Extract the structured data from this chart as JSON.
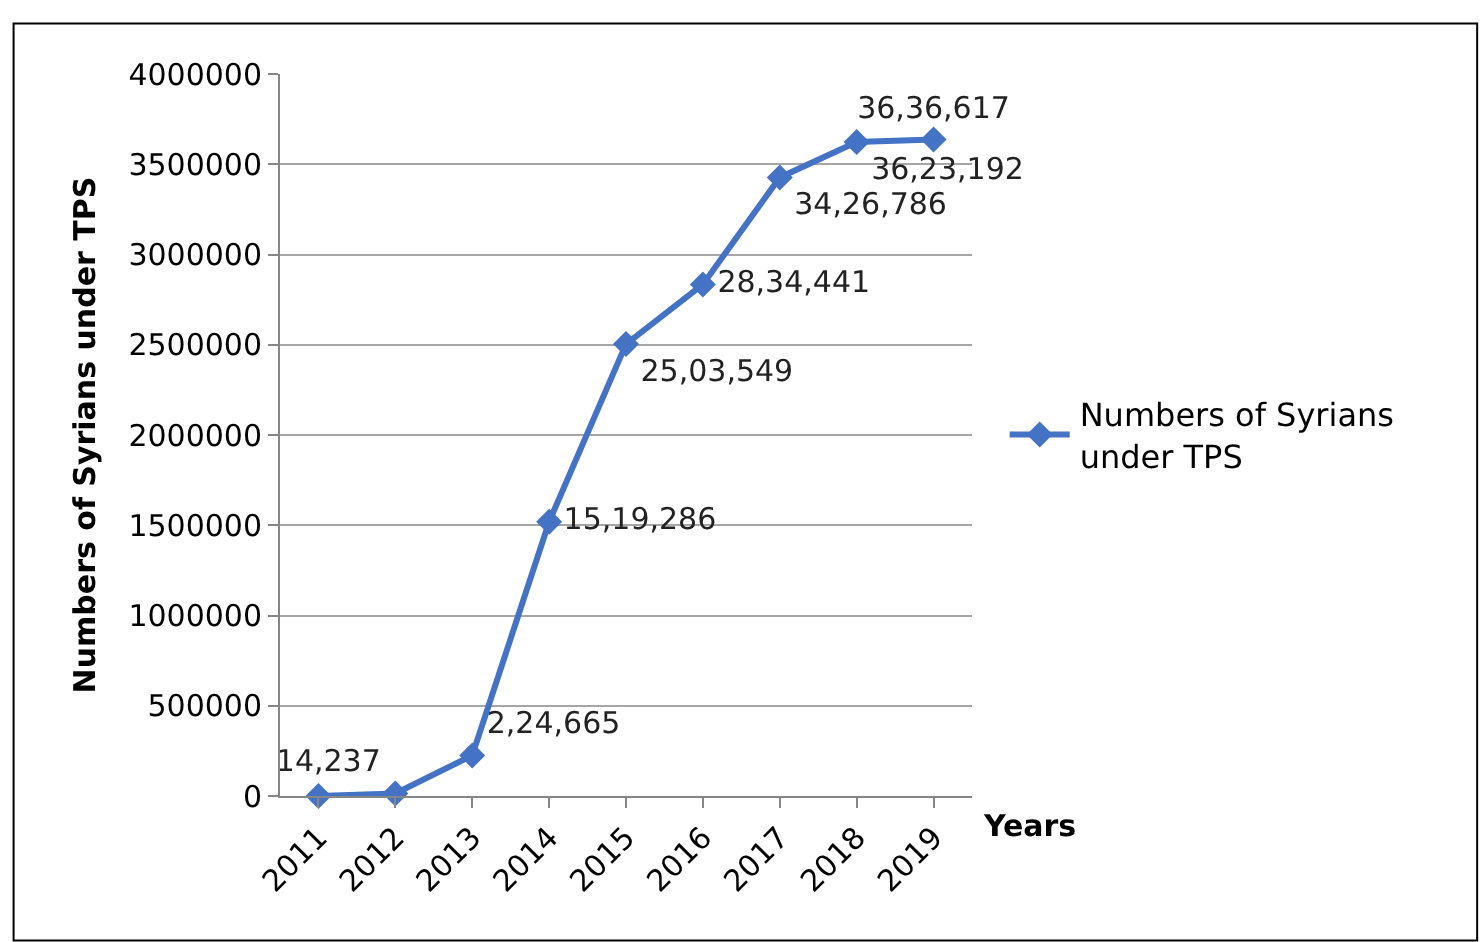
{
  "chart_data": {
    "type": "line",
    "xlabel": "Years",
    "ylabel": "Numbers of Syrians under TPS",
    "categories": [
      "2011",
      "2012",
      "2013",
      "2014",
      "2015",
      "2016",
      "2017",
      "2018",
      "2019"
    ],
    "series": [
      {
        "name": "Numbers of Syrians under TPS",
        "color": "#4472c4",
        "values": [
          0,
          14237,
          224665,
          1519286,
          2503549,
          2834441,
          3426786,
          3623192,
          3636617
        ],
        "value_labels": [
          null,
          "14,237",
          "2,24,665",
          "15,19,286",
          "25,03,549",
          "28,34,441",
          "34,26,786",
          "36,23,192",
          "36,36,617"
        ]
      }
    ],
    "ylim": [
      0,
      4000000
    ],
    "yticks": [
      0,
      500000,
      1000000,
      1500000,
      2000000,
      2500000,
      3000000,
      3500000,
      4000000
    ],
    "grid": "y",
    "legend": "right",
    "marker": "diamond",
    "line_style": "solid"
  }
}
